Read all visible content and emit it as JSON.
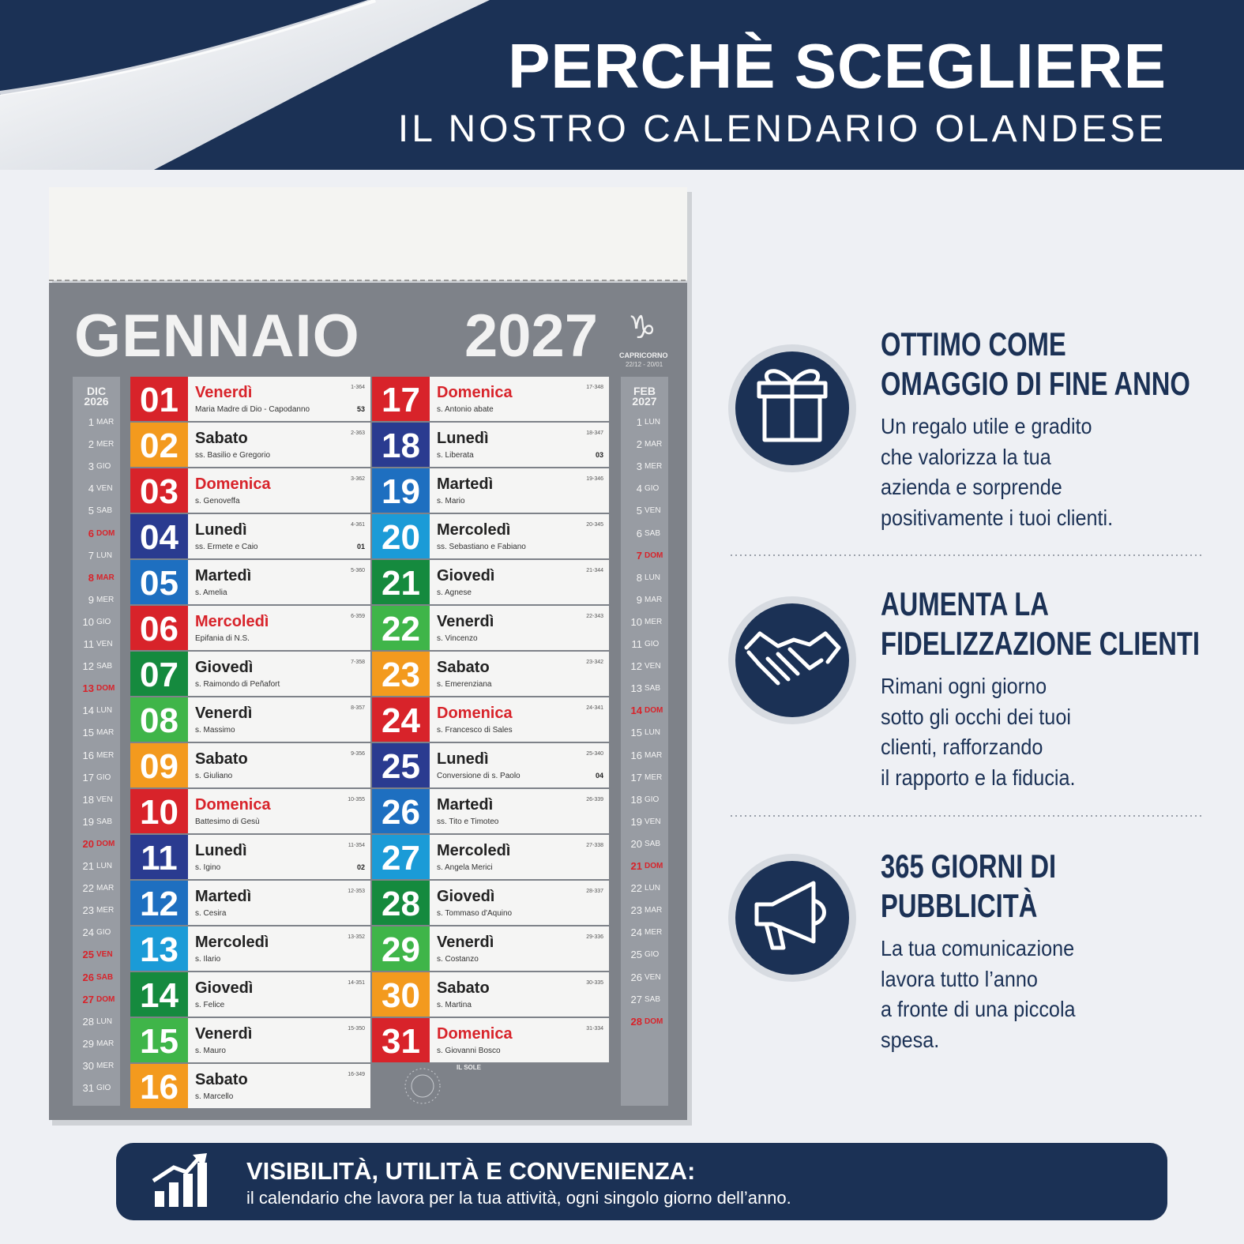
{
  "header": {
    "title": "PERCHÈ SCEGLIERE",
    "subtitle": "IL NOSTRO CALENDARIO OLANDESE"
  },
  "calendar": {
    "month": "GENNAIO",
    "year": "2027",
    "zodiac_symbol": "♑",
    "zodiac": "CAPRICORNO",
    "zodiac_dates": "22/12 - 20/01",
    "sun_label": "IL SOLE",
    "prev": {
      "month": "DIC",
      "year": "2026",
      "days": [
        [
          "1",
          "MAR"
        ],
        [
          "2",
          "MER"
        ],
        [
          "3",
          "GIO"
        ],
        [
          "4",
          "VEN"
        ],
        [
          "5",
          "SAB"
        ],
        [
          "6",
          "DOM",
          true
        ],
        [
          "7",
          "LUN"
        ],
        [
          "8",
          "MAR",
          true
        ],
        [
          "9",
          "MER"
        ],
        [
          "10",
          "GIO"
        ],
        [
          "11",
          "VEN"
        ],
        [
          "12",
          "SAB"
        ],
        [
          "13",
          "DOM",
          true
        ],
        [
          "14",
          "LUN"
        ],
        [
          "15",
          "MAR"
        ],
        [
          "16",
          "MER"
        ],
        [
          "17",
          "GIO"
        ],
        [
          "18",
          "VEN"
        ],
        [
          "19",
          "SAB"
        ],
        [
          "20",
          "DOM",
          true
        ],
        [
          "21",
          "LUN"
        ],
        [
          "22",
          "MAR"
        ],
        [
          "23",
          "MER"
        ],
        [
          "24",
          "GIO"
        ],
        [
          "25",
          "VEN",
          true
        ],
        [
          "26",
          "SAB",
          true
        ],
        [
          "27",
          "DOM",
          true
        ],
        [
          "28",
          "LUN"
        ],
        [
          "29",
          "MAR"
        ],
        [
          "30",
          "MER"
        ],
        [
          "31",
          "GIO"
        ]
      ]
    },
    "next": {
      "month": "FEB",
      "year": "2027",
      "days": [
        [
          "1",
          "LUN"
        ],
        [
          "2",
          "MAR"
        ],
        [
          "3",
          "MER"
        ],
        [
          "4",
          "GIO"
        ],
        [
          "5",
          "VEN"
        ],
        [
          "6",
          "SAB"
        ],
        [
          "7",
          "DOM",
          true
        ],
        [
          "8",
          "LUN"
        ],
        [
          "9",
          "MAR"
        ],
        [
          "10",
          "MER"
        ],
        [
          "11",
          "GIO"
        ],
        [
          "12",
          "VEN"
        ],
        [
          "13",
          "SAB"
        ],
        [
          "14",
          "DOM",
          true
        ],
        [
          "15",
          "LUN"
        ],
        [
          "16",
          "MAR"
        ],
        [
          "17",
          "MER"
        ],
        [
          "18",
          "GIO"
        ],
        [
          "19",
          "VEN"
        ],
        [
          "20",
          "SAB"
        ],
        [
          "21",
          "DOM",
          true
        ],
        [
          "22",
          "LUN"
        ],
        [
          "23",
          "MAR"
        ],
        [
          "24",
          "MER"
        ],
        [
          "25",
          "GIO"
        ],
        [
          "26",
          "VEN"
        ],
        [
          "27",
          "SAB"
        ],
        [
          "28",
          "DOM",
          true
        ]
      ]
    },
    "days": [
      {
        "n": "01",
        "name": "Venerdì",
        "saint": "Maria Madre di Dio - Capodanno",
        "code": "1-364",
        "week": "53",
        "color": "#d8232a",
        "red": true
      },
      {
        "n": "02",
        "name": "Sabato",
        "saint": "ss. Basilio e Gregorio",
        "code": "2-363",
        "color": "#f39a1e"
      },
      {
        "n": "03",
        "name": "Domenica",
        "saint": "s. Genoveffa",
        "code": "3-362",
        "color": "#d8232a",
        "red": true
      },
      {
        "n": "04",
        "name": "Lunedì",
        "saint": "ss. Ermete e Caio",
        "code": "4-361",
        "week": "01",
        "color": "#2a3b90"
      },
      {
        "n": "05",
        "name": "Martedì",
        "saint": "s. Amelia",
        "code": "5-360",
        "color": "#1e6fc0"
      },
      {
        "n": "06",
        "name": "Mercoledì",
        "saint": "Epifania di N.S.",
        "code": "6-359",
        "color": "#d8232a",
        "red": true
      },
      {
        "n": "07",
        "name": "Giovedì",
        "saint": "s. Raimondo di Peñafort",
        "code": "7-358",
        "color": "#158a3e"
      },
      {
        "n": "08",
        "name": "Venerdì",
        "saint": "s. Massimo",
        "code": "8-357",
        "color": "#3fb549"
      },
      {
        "n": "09",
        "name": "Sabato",
        "saint": "s. Giuliano",
        "code": "9-356",
        "color": "#f39a1e"
      },
      {
        "n": "10",
        "name": "Domenica",
        "saint": "Battesimo di Gesù",
        "code": "10-355",
        "color": "#d8232a",
        "red": true
      },
      {
        "n": "11",
        "name": "Lunedì",
        "saint": "s. Igino",
        "code": "11-354",
        "week": "02",
        "color": "#2a3b90"
      },
      {
        "n": "12",
        "name": "Martedì",
        "saint": "s. Cesira",
        "code": "12-353",
        "color": "#1e6fc0"
      },
      {
        "n": "13",
        "name": "Mercoledì",
        "saint": "s. Ilario",
        "code": "13-352",
        "color": "#1b9bd7"
      },
      {
        "n": "14",
        "name": "Giovedì",
        "saint": "s. Felice",
        "code": "14-351",
        "color": "#158a3e"
      },
      {
        "n": "15",
        "name": "Venerdì",
        "saint": "s. Mauro",
        "code": "15-350",
        "color": "#3fb549"
      },
      {
        "n": "16",
        "name": "Sabato",
        "saint": "s. Marcello",
        "code": "16-349",
        "color": "#f39a1e"
      },
      {
        "n": "17",
        "name": "Domenica",
        "saint": "s. Antonio abate",
        "code": "17-348",
        "color": "#d8232a",
        "red": true
      },
      {
        "n": "18",
        "name": "Lunedì",
        "saint": "s. Liberata",
        "code": "18-347",
        "week": "03",
        "color": "#2a3b90"
      },
      {
        "n": "19",
        "name": "Martedì",
        "saint": "s. Mario",
        "code": "19-346",
        "color": "#1e6fc0"
      },
      {
        "n": "20",
        "name": "Mercoledì",
        "saint": "ss. Sebastiano e Fabiano",
        "code": "20-345",
        "color": "#1b9bd7"
      },
      {
        "n": "21",
        "name": "Giovedì",
        "saint": "s. Agnese",
        "code": "21-344",
        "color": "#158a3e"
      },
      {
        "n": "22",
        "name": "Venerdì",
        "saint": "s. Vincenzo",
        "code": "22-343",
        "color": "#3fb549"
      },
      {
        "n": "23",
        "name": "Sabato",
        "saint": "s. Emerenziana",
        "code": "23-342",
        "color": "#f39a1e"
      },
      {
        "n": "24",
        "name": "Domenica",
        "saint": "s. Francesco di Sales",
        "code": "24-341",
        "color": "#d8232a",
        "red": true
      },
      {
        "n": "25",
        "name": "Lunedì",
        "saint": "Conversione di s. Paolo",
        "code": "25-340",
        "week": "04",
        "color": "#2a3b90"
      },
      {
        "n": "26",
        "name": "Martedì",
        "saint": "ss. Tito e Timoteo",
        "code": "26-339",
        "color": "#1e6fc0"
      },
      {
        "n": "27",
        "name": "Mercoledì",
        "saint": "s. Angela Merici",
        "code": "27-338",
        "color": "#1b9bd7"
      },
      {
        "n": "28",
        "name": "Giovedì",
        "saint": "s. Tommaso d'Aquino",
        "code": "28-337",
        "color": "#158a3e"
      },
      {
        "n": "29",
        "name": "Venerdì",
        "saint": "s. Costanzo",
        "code": "29-336",
        "color": "#3fb549"
      },
      {
        "n": "30",
        "name": "Sabato",
        "saint": "s. Martina",
        "code": "30-335",
        "color": "#f39a1e"
      },
      {
        "n": "31",
        "name": "Domenica",
        "saint": "s. Giovanni Bosco",
        "code": "31-334",
        "color": "#d8232a",
        "red": true
      }
    ]
  },
  "features": [
    {
      "title": [
        "OTTIMO COME",
        "OMAGGIO DI FINE ANNO"
      ],
      "body": [
        "Un regalo utile e gradito",
        "che valorizza la tua",
        "azienda e sorprende",
        "positivamente i tuoi clienti."
      ]
    },
    {
      "title": [
        "AUMENTA LA",
        "FIDELIZZAZIONE CLIENTI"
      ],
      "body": [
        "Rimani ogni giorno",
        "sotto gli occhi dei tuoi",
        "clienti, rafforzando",
        "il rapporto e la fiducia."
      ]
    },
    {
      "title": [
        "365 GIORNI DI",
        "PUBBLICITÀ"
      ],
      "body": [
        "La tua comunicazione",
        "lavora tutto l’anno",
        "a fronte di una piccola",
        "spesa."
      ]
    }
  ],
  "banner": {
    "title": "VISIBILITÀ, UTILITÀ E CONVENIENZA:",
    "text": "il calendario che lavora per la tua attività, ogni singolo giorno dell’anno."
  }
}
